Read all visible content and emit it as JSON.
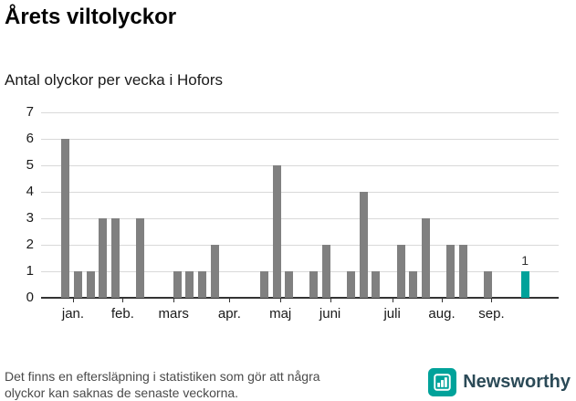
{
  "chart_data": {
    "type": "bar",
    "title": "Årets viltolyckor",
    "subtitle": "Antal olyckor per vecka i Hofors",
    "xlabel": "",
    "ylabel": "",
    "ylim": [
      0,
      7
    ],
    "yticks": [
      0,
      1,
      2,
      3,
      4,
      5,
      6,
      7
    ],
    "grid": "horizontal",
    "legend": "none",
    "x_unit": "week",
    "values": [
      6,
      1,
      1,
      3,
      3,
      0,
      3,
      0,
      0,
      1,
      1,
      1,
      2,
      0,
      0,
      0,
      1,
      5,
      1,
      0,
      1,
      2,
      0,
      1,
      4,
      1,
      0,
      2,
      1,
      3,
      0,
      2,
      2,
      0,
      1,
      0,
      0,
      1
    ],
    "months": [
      {
        "label": "jan.",
        "week": 0.6
      },
      {
        "label": "feb.",
        "week": 4.6
      },
      {
        "label": "mars",
        "week": 8.7
      },
      {
        "label": "apr.",
        "week": 13.2
      },
      {
        "label": "maj",
        "week": 17.3
      },
      {
        "label": "juni",
        "week": 21.3
      },
      {
        "label": "juli",
        "week": 26.3
      },
      {
        "label": "aug.",
        "week": 30.3
      },
      {
        "label": "sep.",
        "week": 34.3
      }
    ],
    "bar_color": "#808080",
    "highlight_color": "#00a29a",
    "highlight_index": 37,
    "highlight_label": "1",
    "gridline_color": "#d9d9d9",
    "axis_color": "#333333"
  },
  "footer": {
    "line1": "Det finns en eftersläpning i statistiken som gör att några",
    "line2": "olyckor kan saknas de senaste veckorna."
  },
  "brand": {
    "name": "Newsworthy",
    "color": "#00a29a"
  }
}
